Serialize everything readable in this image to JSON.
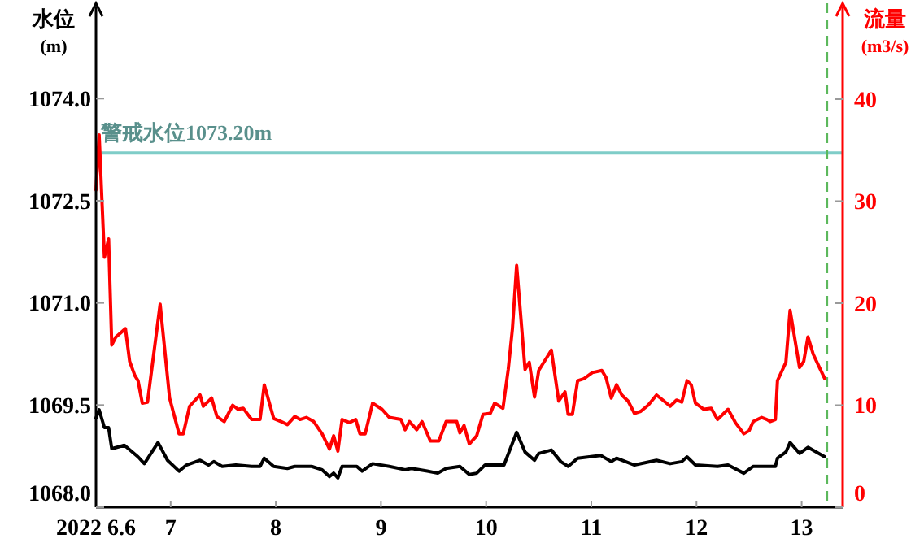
{
  "chart_data": {
    "type": "line",
    "ylabel": "水位\n(m)",
    "y2label": "流量\n(m3/s)",
    "xlim": [
      6.29,
      13.39
    ],
    "xticks": [
      {
        "value": 6.29,
        "label": "2022 6.6"
      },
      7,
      8,
      9,
      10,
      11,
      12,
      13
    ],
    "ylim": [
      1068,
      1075.4
    ],
    "yticks": [
      {
        "value": 1068,
        "label": "1068.0"
      },
      {
        "value": 1069.5,
        "label": "1069.5"
      },
      {
        "value": 1071,
        "label": "1071.0"
      },
      {
        "value": 1072.5,
        "label": "1072.5"
      },
      {
        "value": 1074,
        "label": "1074.0"
      }
    ],
    "y2lim": [
      0,
      49.4
    ],
    "y2ticks": [
      0,
      10,
      20,
      30,
      40
    ],
    "grid": false,
    "marker": "none",
    "line_style": "solid",
    "ref_lines": [
      {
        "axis": "y",
        "value": 1073.2,
        "label": "警戒水位1073.20m",
        "color": "#7fcdc8",
        "line_style": "solid"
      },
      {
        "axis": "x",
        "value": 13.24,
        "color": "#5cb85c",
        "line_style": "dashed"
      }
    ],
    "series": [
      {
        "color": "#ff0000",
        "axis": "y2",
        "x": [
          6.29,
          6.32,
          6.37,
          6.41,
          6.44,
          6.48,
          6.57,
          6.61,
          6.66,
          6.69,
          6.73,
          6.78,
          6.9,
          6.99,
          7.08,
          7.12,
          7.18,
          7.28,
          7.31,
          7.39,
          7.44,
          7.51,
          7.59,
          7.64,
          7.69,
          7.77,
          7.85,
          7.89,
          7.98,
          8.05,
          8.11,
          8.18,
          8.23,
          8.29,
          8.36,
          8.44,
          8.51,
          8.55,
          8.59,
          8.63,
          8.7,
          8.76,
          8.8,
          8.85,
          8.92,
          9.01,
          9.08,
          9.19,
          9.23,
          9.27,
          9.34,
          9.39,
          9.47,
          9.55,
          9.62,
          9.72,
          9.75,
          9.79,
          9.84,
          9.91,
          9.97,
          10.04,
          10.08,
          10.16,
          10.21,
          10.25,
          10.29,
          10.37,
          10.41,
          10.46,
          10.5,
          10.62,
          10.69,
          10.75,
          10.78,
          10.82,
          10.87,
          10.93,
          11.01,
          11.1,
          11.14,
          11.19,
          11.24,
          11.29,
          11.35,
          11.41,
          11.47,
          11.54,
          11.62,
          11.68,
          11.75,
          11.81,
          11.86,
          11.91,
          11.95,
          11.99,
          12.07,
          12.14,
          12.2,
          12.3,
          12.37,
          12.45,
          12.5,
          12.54,
          12.62,
          12.67,
          12.7,
          12.75,
          12.77,
          12.85,
          12.89,
          12.98,
          13.02,
          13.06,
          13.11,
          13.16,
          13.22
        ],
        "values": [
          31.1,
          36.5,
          24.5,
          26.3,
          15.9,
          16.7,
          17.5,
          14.3,
          12.9,
          12.4,
          10.2,
          10.3,
          19.9,
          10.7,
          7.2,
          7.2,
          9.9,
          11.0,
          9.9,
          10.7,
          8.9,
          8.4,
          10.0,
          9.6,
          9.7,
          8.6,
          8.6,
          12.0,
          8.7,
          8.4,
          8.1,
          8.9,
          8.6,
          8.8,
          8.4,
          7.2,
          5.7,
          7.0,
          5.5,
          8.6,
          8.3,
          8.6,
          7.2,
          7.2,
          10.2,
          9.6,
          8.8,
          8.6,
          7.6,
          8.4,
          7.6,
          8.4,
          6.5,
          6.5,
          8.4,
          8.4,
          7.3,
          8.0,
          6.2,
          7.0,
          9.1,
          9.2,
          10.2,
          9.7,
          13.5,
          17.5,
          23.7,
          13.5,
          14.2,
          10.8,
          13.4,
          15.4,
          10.4,
          11.3,
          9.1,
          9.1,
          12.4,
          12.6,
          13.2,
          13.4,
          12.7,
          10.7,
          12.0,
          11.0,
          10.4,
          9.2,
          9.4,
          10.0,
          11.0,
          10.5,
          9.9,
          10.5,
          10.3,
          12.4,
          12.0,
          10.2,
          9.6,
          9.7,
          8.6,
          9.6,
          8.3,
          7.2,
          7.5,
          8.4,
          8.8,
          8.6,
          8.4,
          8.6,
          12.4,
          14.2,
          19.3,
          13.7,
          14.3,
          16.7,
          15.0,
          13.9,
          12.6
        ]
      },
      {
        "color": "#000000",
        "x": [
          6.29,
          6.32,
          6.37,
          6.41,
          6.44,
          6.56,
          6.69,
          6.75,
          6.88,
          6.97,
          7.08,
          7.15,
          7.28,
          7.36,
          7.41,
          7.49,
          7.62,
          7.77,
          7.85,
          7.89,
          7.98,
          8.11,
          8.18,
          8.34,
          8.44,
          8.51,
          8.55,
          8.59,
          8.63,
          8.77,
          8.82,
          8.92,
          9.08,
          9.23,
          9.29,
          9.44,
          9.54,
          9.62,
          9.75,
          9.84,
          9.91,
          9.99,
          10.17,
          10.29,
          10.37,
          10.46,
          10.5,
          10.62,
          10.71,
          10.78,
          10.87,
          11.09,
          11.19,
          11.24,
          11.41,
          11.62,
          11.75,
          11.86,
          11.91,
          11.99,
          12.2,
          12.3,
          12.45,
          12.54,
          12.75,
          12.77,
          12.85,
          12.89,
          12.98,
          13.06,
          13.22
        ],
        "values": [
          1069.31,
          1069.43,
          1069.17,
          1069.17,
          1068.86,
          1068.91,
          1068.74,
          1068.64,
          1068.95,
          1068.69,
          1068.53,
          1068.62,
          1068.69,
          1068.62,
          1068.67,
          1068.6,
          1068.62,
          1068.6,
          1068.6,
          1068.72,
          1068.6,
          1068.57,
          1068.6,
          1068.6,
          1068.55,
          1068.45,
          1068.5,
          1068.43,
          1068.6,
          1068.6,
          1068.53,
          1068.64,
          1068.6,
          1068.55,
          1068.57,
          1068.53,
          1068.5,
          1068.57,
          1068.6,
          1068.48,
          1068.5,
          1068.62,
          1068.62,
          1069.1,
          1068.81,
          1068.69,
          1068.79,
          1068.84,
          1068.67,
          1068.6,
          1068.72,
          1068.76,
          1068.67,
          1068.72,
          1068.62,
          1068.69,
          1068.64,
          1068.67,
          1068.74,
          1068.62,
          1068.6,
          1068.62,
          1068.5,
          1068.6,
          1068.6,
          1068.72,
          1068.81,
          1068.95,
          1068.79,
          1068.88,
          1068.74
        ]
      }
    ]
  }
}
